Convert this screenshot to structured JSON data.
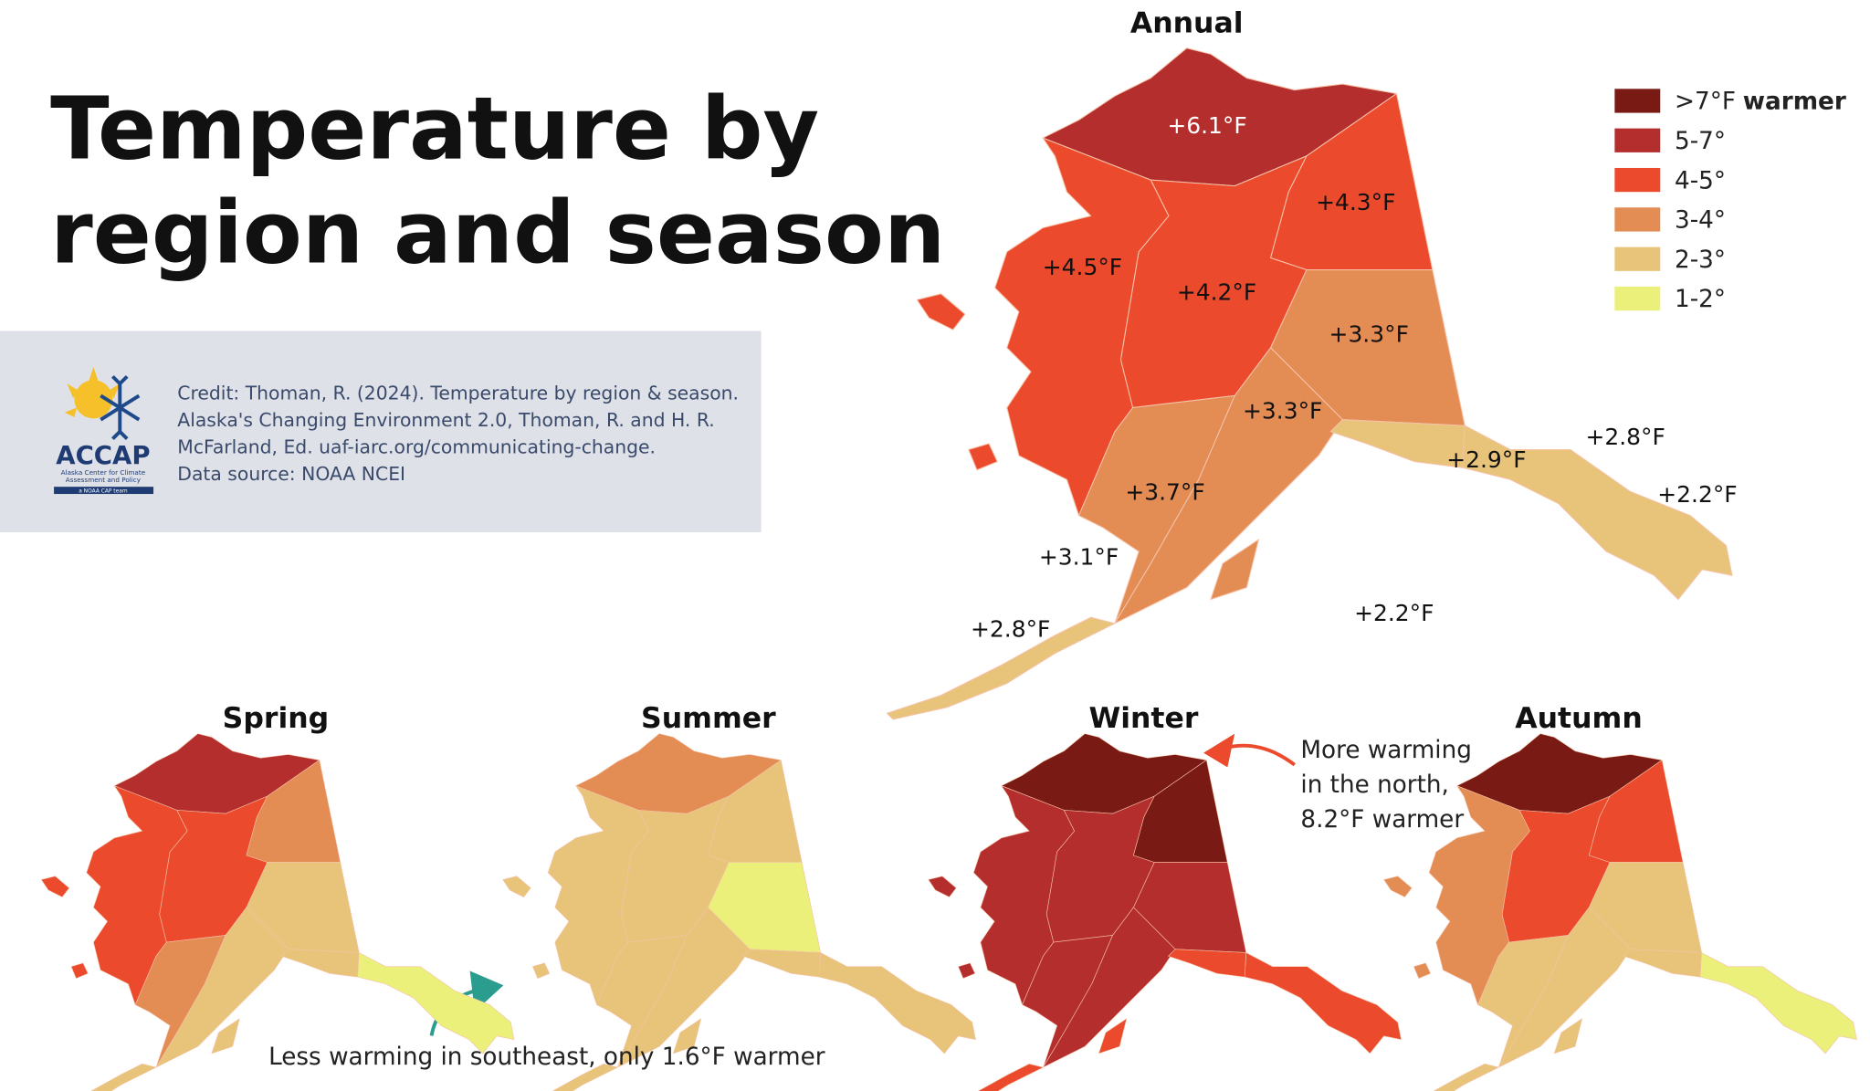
{
  "title_lines": [
    "Temperature by",
    "region and season"
  ],
  "credit": {
    "lines": [
      "Credit: Thoman, R. (2024). Temperature by region & season.",
      "Alaska's Changing Environment 2.0, Thoman, R. and H. R.",
      "McFarland, Ed. uaf-iarc.org/communicating-change.",
      "Data source: NOAA NCEI"
    ],
    "logo": {
      "name": "ACCAP",
      "subtitle_lines": [
        "Alaska Center for Climate",
        "Assessment and Policy"
      ],
      "tag": "a NOAA CAP team"
    }
  },
  "legend": [
    {
      "label": ">7°F",
      "suffix": "warmer",
      "color": "#7a1a14"
    },
    {
      "label": "5-7°",
      "color": "#b52e2e"
    },
    {
      "label": "4-5°",
      "color": "#ec4a2c"
    },
    {
      "label": "3-4°",
      "color": "#e38c54"
    },
    {
      "label": "2-3°",
      "color": "#e8c47a"
    },
    {
      "label": "1-2°",
      "color": "#eaf07a"
    }
  ],
  "annual": {
    "title": "Annual",
    "labels": [
      "+6.1°F",
      "+4.3°F",
      "+4.5°F",
      "+4.2°F",
      "+3.3°F",
      "+3.3°F",
      "+2.9°F",
      "+2.8°F",
      "+2.2°F",
      "+3.7°F",
      "+3.1°F",
      "+2.8°F",
      "+2.2°F"
    ]
  },
  "seasons": [
    {
      "title": "Spring"
    },
    {
      "title": "Summer"
    },
    {
      "title": "Winter"
    },
    {
      "title": "Autumn"
    }
  ],
  "annotations": [
    {
      "lines": [
        "More warming",
        "in the north,",
        "8.2°F warmer"
      ]
    },
    {
      "text": "Less warming in southeast, only 1.6°F warmer"
    }
  ]
}
